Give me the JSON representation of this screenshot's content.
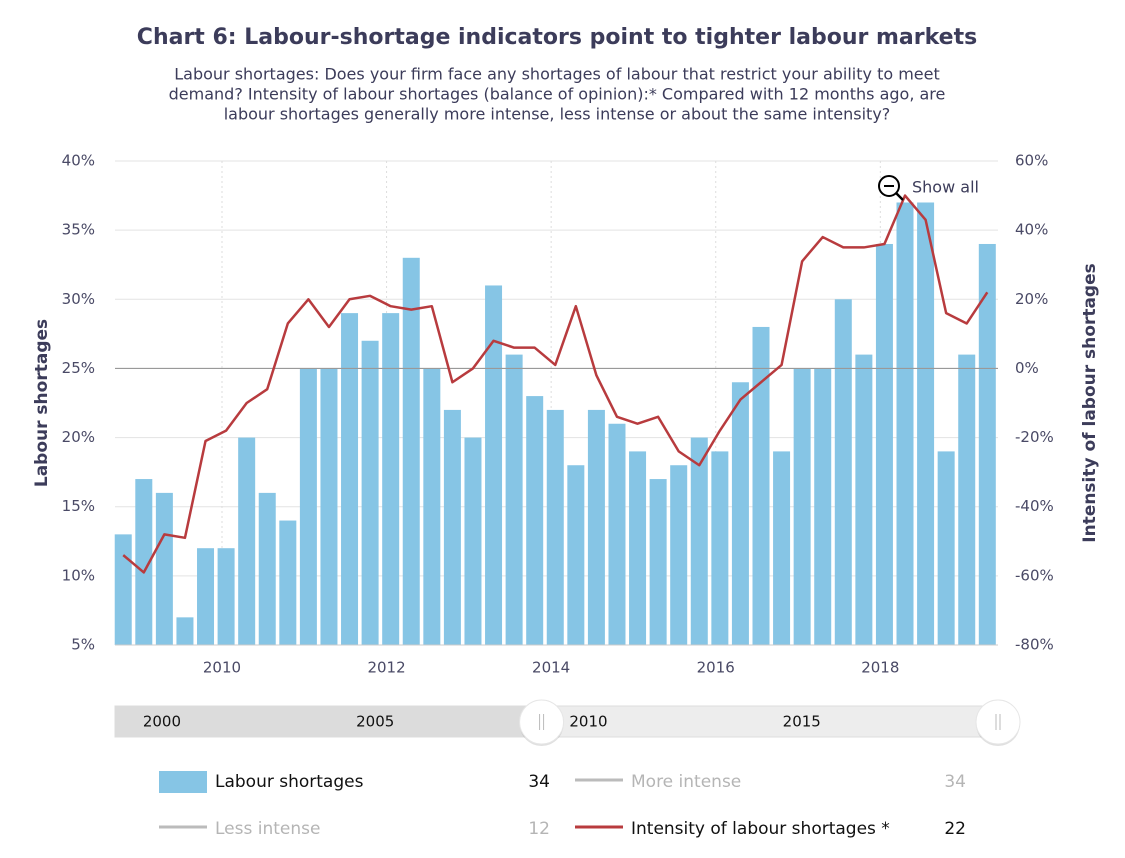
{
  "chart_data": {
    "type": "bar-line",
    "title": "Chart 6: Labour-shortage indicators point to tighter labour markets",
    "subtitle": [
      "Labour shortages: Does your firm face any shortages of labour that restrict your ability to meet",
      "demand? Intensity of labour shortages (balance of opinion):* Compared with 12 months ago, are",
      "labour shortages generally more intense, less intense or about the same intensity?"
    ],
    "y_label": "Labour shortages",
    "y2_label": "Intensity of labour shortages",
    "reset_button": "Show all",
    "x": [
      2008.8,
      2009.05,
      2009.3,
      2009.55,
      2009.8,
      2010.05,
      2010.3,
      2010.55,
      2010.8,
      2011.05,
      2011.3,
      2011.55,
      2011.8,
      2012.05,
      2012.3,
      2012.55,
      2012.8,
      2013.05,
      2013.3,
      2013.55,
      2013.8,
      2014.05,
      2014.3,
      2014.55,
      2014.8,
      2015.05,
      2015.3,
      2015.55,
      2015.8,
      2016.05,
      2016.3,
      2016.55,
      2016.8,
      2017.05,
      2017.3,
      2017.55,
      2017.8,
      2018.05,
      2018.3,
      2018.55,
      2018.8,
      2019.05,
      2019.3
    ],
    "xlim": [
      2008.7,
      2019.43
    ],
    "xticks": [
      2010,
      2012,
      2014,
      2016,
      2018
    ],
    "ylim": [
      5,
      40
    ],
    "yticks": [
      {
        "value": 5,
        "label": "5%"
      },
      {
        "value": 10,
        "label": "10%"
      },
      {
        "value": 15,
        "label": "15%"
      },
      {
        "value": 20,
        "label": "20%"
      },
      {
        "value": 25,
        "label": "25%"
      },
      {
        "value": 30,
        "label": "30%"
      },
      {
        "value": 35,
        "label": "35%"
      },
      {
        "value": 40,
        "label": "40%"
      }
    ],
    "y2lim": [
      -80,
      60
    ],
    "y2ticks": [
      {
        "value": -80,
        "label": "-80%"
      },
      {
        "value": -60,
        "label": "-60%"
      },
      {
        "value": -40,
        "label": "-40%"
      },
      {
        "value": -20,
        "label": "-20%"
      },
      {
        "value": 0,
        "label": "0%"
      },
      {
        "value": 20,
        "label": "20%"
      },
      {
        "value": 40,
        "label": "40%"
      },
      {
        "value": 60,
        "label": "60%"
      }
    ],
    "y2_plotline": 0,
    "grid": true,
    "series": [
      {
        "name": "Labour shortages",
        "type": "bar",
        "color": "#86c5e5",
        "axis": "y",
        "values": [
          13,
          17,
          16,
          7,
          12,
          12,
          20,
          16,
          14,
          25,
          25,
          29,
          27,
          29,
          33,
          25,
          22,
          20,
          31,
          26,
          23,
          22,
          18,
          22,
          21,
          19,
          17,
          18,
          20,
          19,
          24,
          28,
          19,
          25,
          25,
          30,
          26,
          34,
          37,
          37,
          19,
          26,
          34
        ]
      },
      {
        "name": "Intensity of labour shortages *",
        "type": "line",
        "color": "#b83b3e",
        "axis": "y2",
        "values": [
          -54,
          -59,
          -48,
          -49,
          -21,
          -18,
          -10,
          -6,
          13,
          20,
          12,
          20,
          21,
          18,
          17,
          18,
          -4,
          0,
          8,
          6,
          6,
          1,
          18,
          -2,
          -14,
          -16,
          -14,
          -24,
          -28,
          -18,
          -9,
          -4,
          1,
          31,
          38,
          35,
          35,
          36,
          50,
          43,
          16,
          13,
          22
        ]
      }
    ],
    "legend": [
      {
        "name": "Labour shortages",
        "value": 34,
        "color": "#86c5e5",
        "kind": "bar",
        "hidden": false
      },
      {
        "name": "More intense",
        "value": 34,
        "color": "#bbbbbb",
        "kind": "line",
        "hidden": true
      },
      {
        "name": "Less intense",
        "value": 12,
        "color": "#bbbbbb",
        "kind": "line",
        "hidden": true
      },
      {
        "name": "Intensity of labour shortages *",
        "value": 22,
        "color": "#b83b3e",
        "kind": "line",
        "hidden": false
      }
    ],
    "navigator": {
      "xlim": [
        1998.9,
        2019.6
      ],
      "xticks": [
        2000,
        2005,
        2010,
        2015
      ],
      "range": [
        2008.9,
        2019.6
      ]
    }
  }
}
